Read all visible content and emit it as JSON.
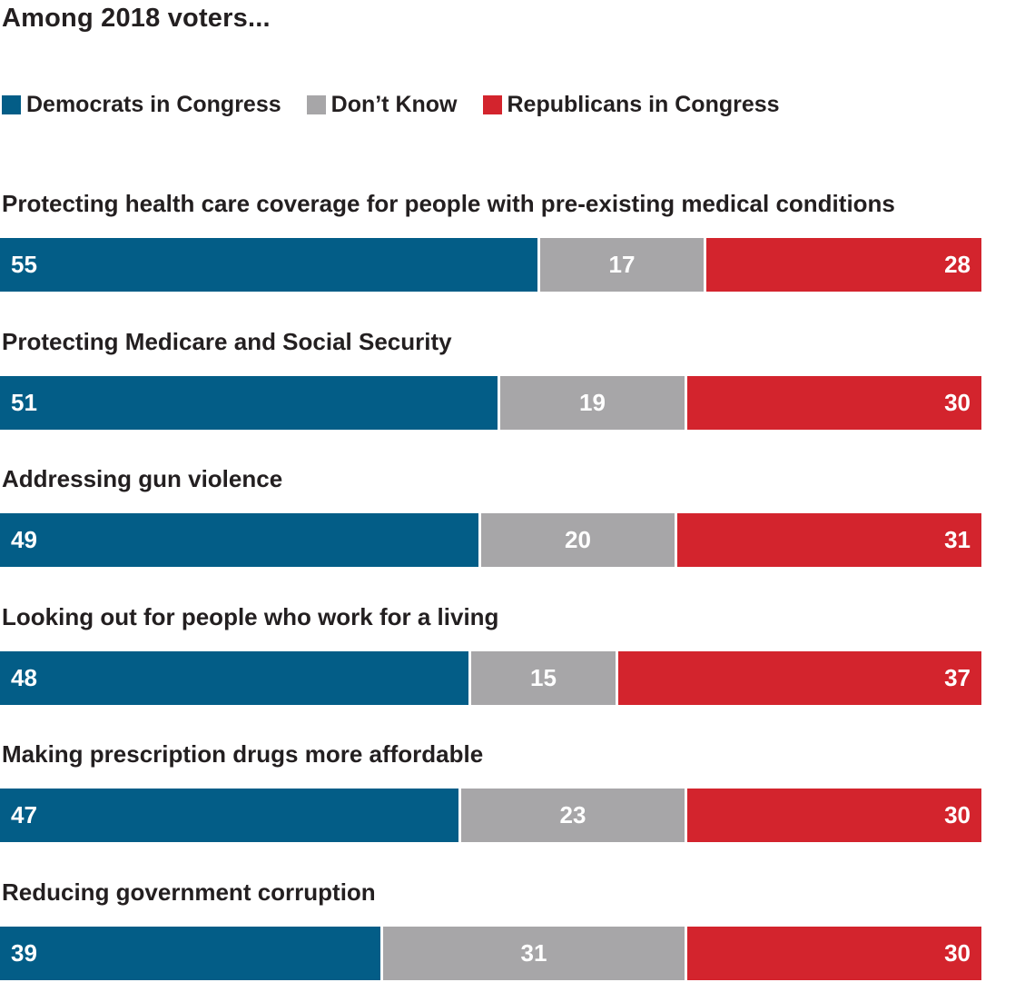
{
  "title": "Among 2018 voters...",
  "colors": {
    "democrats": "#035d87",
    "dont_know": "#a7a6a8",
    "republicans": "#d3242d"
  },
  "legend": [
    {
      "label": "Democrats in Congress",
      "color": "#035d87"
    },
    {
      "label": "Don’t Know",
      "color": "#a7a6a8"
    },
    {
      "label": "Republicans in Congress",
      "color": "#d3242d"
    }
  ],
  "chart_data": {
    "type": "bar",
    "orientation": "horizontal",
    "stacked": true,
    "title": "Among 2018 voters...",
    "xlim": [
      0,
      100
    ],
    "grid": false,
    "legend_position": "top-left",
    "categories": [
      "Protecting health care coverage for people with pre-existing medical conditions",
      "Protecting Medicare and Social Security",
      "Addressing gun violence",
      "Looking out for people who work for a living",
      "Making prescription drugs more affordable",
      "Reducing government corruption"
    ],
    "series": [
      {
        "name": "Democrats in Congress",
        "values": [
          55,
          51,
          49,
          48,
          47,
          39
        ]
      },
      {
        "name": "Don’t Know",
        "values": [
          17,
          19,
          20,
          15,
          23,
          31
        ]
      },
      {
        "name": "Republicans in Congress",
        "values": [
          28,
          30,
          31,
          37,
          30,
          30
        ]
      }
    ]
  }
}
